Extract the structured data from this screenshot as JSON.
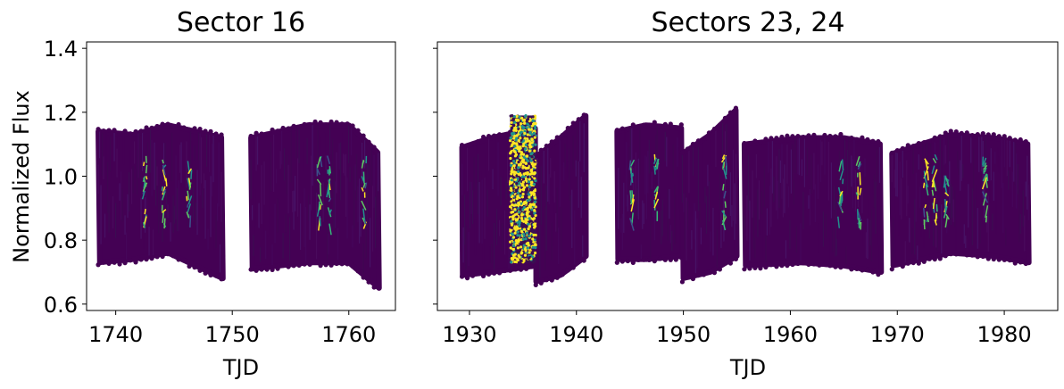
{
  "chart_data": [
    {
      "type": "scatter",
      "title": "Sector 16",
      "xlabel": "TJD",
      "ylabel": "Normalized Flux",
      "xlim": [
        1737.5,
        1764
      ],
      "ylim": [
        0.58,
        1.42
      ],
      "xticks": [
        1740,
        1750,
        1760
      ],
      "yticks": [
        0.6,
        0.8,
        1.0,
        1.2,
        1.4
      ],
      "ytick_labels": [
        "0.6",
        "0.8",
        "1.0",
        "1.2",
        "1.4"
      ],
      "colormap": "viridis",
      "segments": [
        {
          "x_start": 1738.5,
          "x_end": 1749.2,
          "envelope_x": [
            1738.5,
            1741.5,
            1744.5,
            1749.2
          ],
          "upper": [
            1.14,
            1.13,
            1.16,
            1.12
          ],
          "lower": [
            0.73,
            0.74,
            0.76,
            0.68
          ]
        },
        {
          "x_start": 1751.6,
          "x_end": 1762.6,
          "envelope_x": [
            1751.6,
            1756.5,
            1760,
            1762.6
          ],
          "upper": [
            1.12,
            1.16,
            1.16,
            1.07
          ],
          "lower": [
            0.71,
            0.73,
            0.73,
            0.65
          ]
        }
      ],
      "highlights": [
        1742.5,
        1744.2,
        1746.3,
        1757.5,
        1758.3,
        1761.3
      ]
    },
    {
      "type": "scatter",
      "title": "Sectors 23, 24",
      "xlabel": "TJD",
      "ylabel": "",
      "xlim": [
        1927,
        1985
      ],
      "ylim": [
        0.58,
        1.42
      ],
      "xticks": [
        1930,
        1940,
        1950,
        1960,
        1970,
        1980
      ],
      "colormap": "viridis",
      "segments": [
        {
          "x_start": 1929.3,
          "x_end": 1936.2,
          "envelope_x": [
            1929.3,
            1932,
            1936.2
          ],
          "upper": [
            1.09,
            1.12,
            1.15
          ],
          "lower": [
            0.69,
            0.7,
            0.72
          ]
        },
        {
          "x_start": 1936.2,
          "x_end": 1940.9,
          "envelope_x": [
            1936.2,
            1938.5,
            1940.9
          ],
          "upper": [
            1.06,
            1.12,
            1.19
          ],
          "lower": [
            0.67,
            0.69,
            0.75
          ]
        },
        {
          "x_start": 1943.8,
          "x_end": 1949.9,
          "envelope_x": [
            1943.8,
            1946.5,
            1949.9
          ],
          "upper": [
            1.14,
            1.16,
            1.15
          ],
          "lower": [
            0.74,
            0.74,
            0.75
          ]
        },
        {
          "x_start": 1949.9,
          "x_end": 1955,
          "envelope_x": [
            1949.9,
            1952.5,
            1955
          ],
          "upper": [
            1.07,
            1.13,
            1.21
          ],
          "lower": [
            0.68,
            0.7,
            0.75
          ]
        },
        {
          "x_start": 1955.7,
          "x_end": 1968.5,
          "envelope_x": [
            1955.7,
            1961,
            1965,
            1968.5
          ],
          "upper": [
            1.1,
            1.12,
            1.12,
            1.1
          ],
          "lower": [
            0.72,
            0.73,
            0.72,
            0.7
          ]
        },
        {
          "x_start": 1969.5,
          "x_end": 1982.3,
          "envelope_x": [
            1969.5,
            1975,
            1979,
            1982.3
          ],
          "upper": [
            1.07,
            1.13,
            1.12,
            1.1
          ],
          "lower": [
            0.72,
            0.76,
            0.75,
            0.73
          ]
        }
      ],
      "noisy_region": {
        "x_start": 1933.8,
        "x_end": 1936.2,
        "upper": 1.19,
        "lower": 0.73
      },
      "highlights": [
        1945.2,
        1947.5,
        1953.8,
        1964.7,
        1966.4,
        1972.7,
        1973.5,
        1974.6,
        1978.2
      ]
    }
  ]
}
